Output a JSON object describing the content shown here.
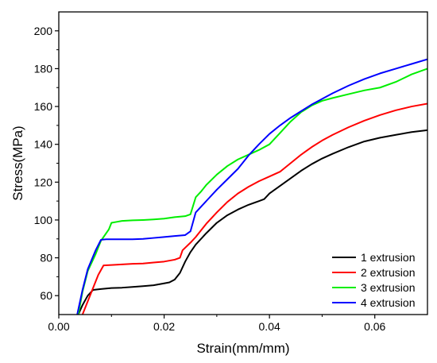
{
  "chart_data": {
    "type": "line",
    "title": "",
    "xlabel": "Strain(mm/mm)",
    "ylabel": "Stress(MPa)",
    "xlim": [
      0.0,
      0.07
    ],
    "ylim": [
      50,
      210
    ],
    "xticks": [
      0.0,
      0.02,
      0.04,
      0.06
    ],
    "xtick_labels": [
      "0.00",
      "0.02",
      "0.04",
      "0.06"
    ],
    "yticks": [
      60,
      80,
      100,
      120,
      140,
      160,
      180,
      200
    ],
    "ytick_labels": [
      "60",
      "80",
      "100",
      "120",
      "140",
      "160",
      "180",
      "200"
    ],
    "grid": false,
    "legend_position": "bottom-right",
    "series": [
      {
        "name": "1 extrusion",
        "color": "#000000",
        "x": [
          0.0037,
          0.0045,
          0.0055,
          0.0065,
          0.008,
          0.01,
          0.012,
          0.014,
          0.016,
          0.018,
          0.02,
          0.021,
          0.022,
          0.023,
          0.024,
          0.025,
          0.026,
          0.028,
          0.03,
          0.032,
          0.034,
          0.036,
          0.038,
          0.039,
          0.04,
          0.042,
          0.044,
          0.046,
          0.048,
          0.05,
          0.052,
          0.055,
          0.058,
          0.061,
          0.064,
          0.067,
          0.07
        ],
        "y": [
          50,
          55,
          60,
          63,
          63.5,
          64,
          64.2,
          64.6,
          65,
          65.5,
          66.5,
          67,
          68.5,
          72,
          78,
          83,
          87,
          93,
          98.5,
          102.5,
          105.5,
          108,
          110,
          111,
          114,
          118,
          122,
          126,
          129.5,
          132.5,
          135,
          138.5,
          141.5,
          143.5,
          145,
          146.5,
          147.5
        ]
      },
      {
        "name": "2 extrusion",
        "color": "#ff0000",
        "x": [
          0.0045,
          0.0055,
          0.0065,
          0.0075,
          0.0085,
          0.01,
          0.012,
          0.014,
          0.016,
          0.018,
          0.02,
          0.022,
          0.023,
          0.0235,
          0.025,
          0.026,
          0.028,
          0.03,
          0.032,
          0.034,
          0.036,
          0.038,
          0.04,
          0.042,
          0.044,
          0.046,
          0.048,
          0.05,
          0.052,
          0.055,
          0.058,
          0.061,
          0.064,
          0.067,
          0.07
        ],
        "y": [
          50,
          57,
          64,
          71,
          76,
          76.2,
          76.5,
          76.8,
          77,
          77.5,
          78,
          79,
          80,
          84,
          88,
          91,
          98,
          104,
          109.5,
          114,
          117.5,
          120.5,
          123,
          125.5,
          130,
          134.5,
          138.5,
          142,
          145,
          149,
          152.5,
          155.5,
          158,
          160,
          161.5
        ]
      },
      {
        "name": "3 extrusion",
        "color": "#00ee00",
        "x": [
          0.0037,
          0.0045,
          0.0055,
          0.007,
          0.008,
          0.0095,
          0.01,
          0.011,
          0.012,
          0.014,
          0.016,
          0.018,
          0.02,
          0.022,
          0.024,
          0.025,
          0.026,
          0.027,
          0.028,
          0.03,
          0.032,
          0.034,
          0.036,
          0.038,
          0.04,
          0.042,
          0.044,
          0.046,
          0.048,
          0.05,
          0.052,
          0.055,
          0.058,
          0.061,
          0.064,
          0.067,
          0.07
        ],
        "y": [
          50,
          62,
          73,
          82,
          89,
          95,
          98.5,
          99,
          99.5,
          99.8,
          100,
          100.3,
          100.7,
          101.5,
          102,
          103,
          112,
          115,
          118.5,
          124,
          128.5,
          132,
          134.5,
          137,
          140,
          146,
          152,
          157,
          160.5,
          163,
          164.5,
          166.5,
          168.5,
          170,
          173,
          177,
          180
        ]
      },
      {
        "name": "4 extrusion",
        "color": "#0000ff",
        "x": [
          0.0035,
          0.0045,
          0.0055,
          0.007,
          0.008,
          0.009,
          0.01,
          0.012,
          0.014,
          0.016,
          0.018,
          0.02,
          0.022,
          0.024,
          0.025,
          0.026,
          0.027,
          0.028,
          0.03,
          0.032,
          0.034,
          0.036,
          0.038,
          0.04,
          0.042,
          0.044,
          0.046,
          0.048,
          0.05,
          0.052,
          0.055,
          0.058,
          0.061,
          0.064,
          0.067,
          0.07
        ],
        "y": [
          50,
          63,
          74,
          84,
          89.5,
          89.8,
          89.8,
          89.8,
          89.8,
          90,
          90.5,
          91,
          91.5,
          92,
          94,
          104,
          107,
          110,
          116,
          121.5,
          127,
          134,
          140,
          145.5,
          150,
          154,
          157.5,
          161,
          164,
          167,
          171,
          174.5,
          177.5,
          180,
          182.5,
          185
        ]
      }
    ]
  }
}
